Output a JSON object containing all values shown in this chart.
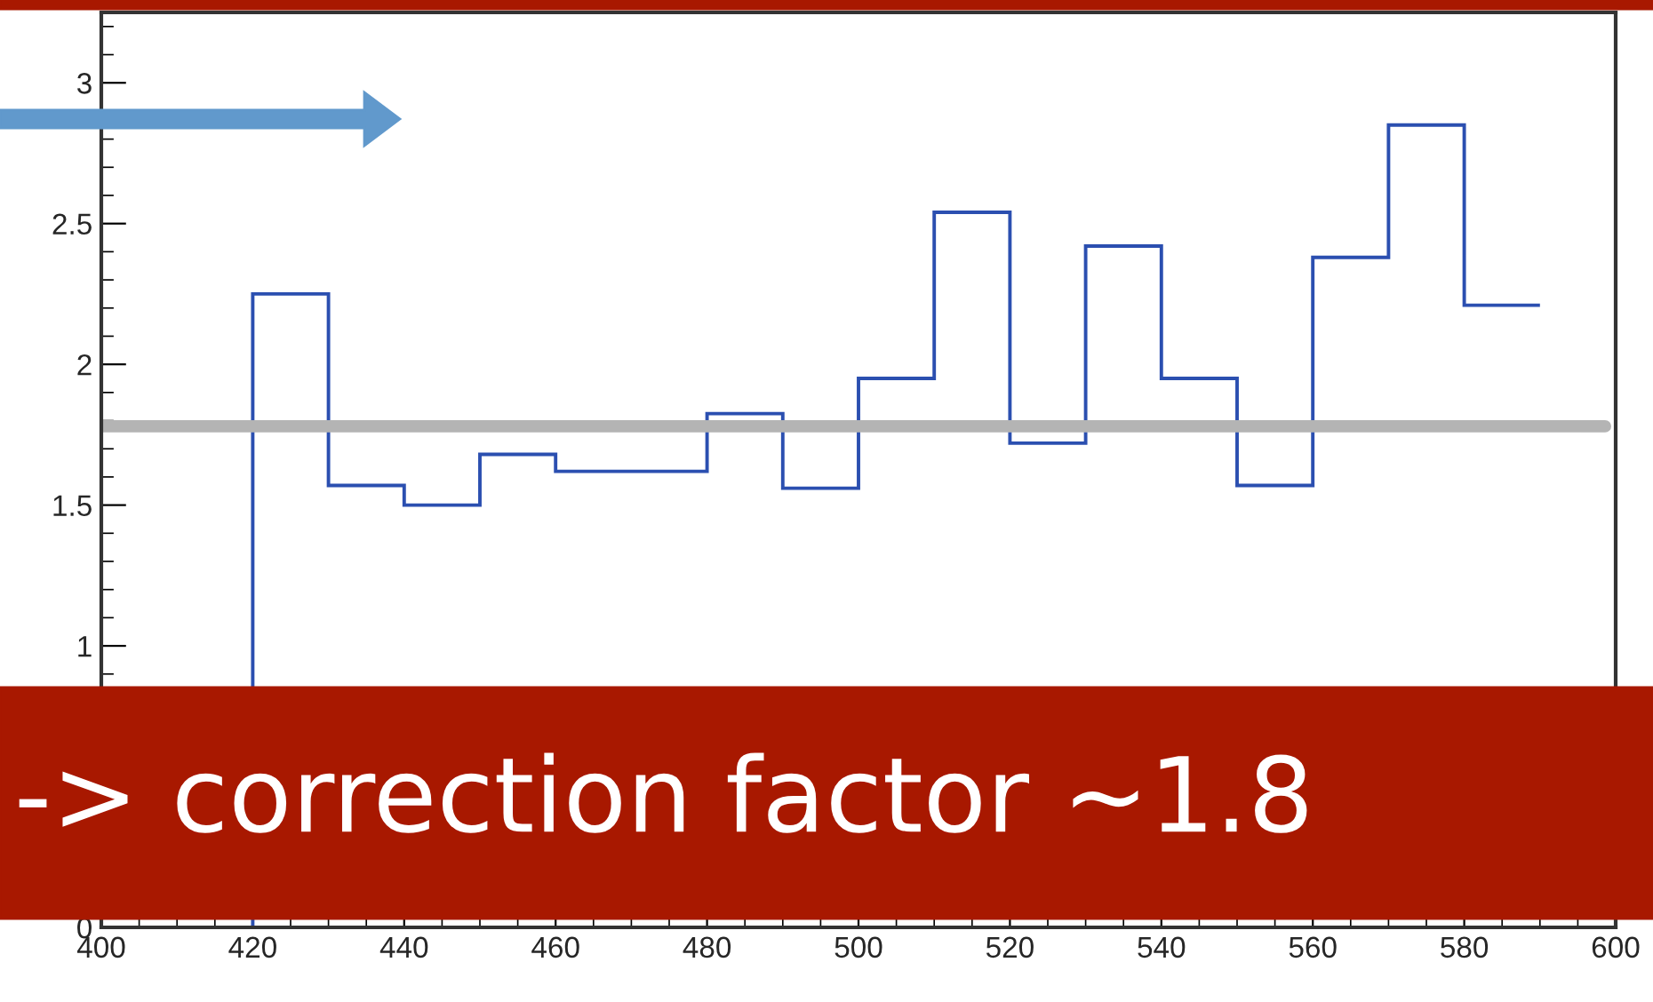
{
  "chart_data": {
    "type": "histogram",
    "bins": [
      400,
      410,
      420,
      430,
      440,
      450,
      460,
      470,
      480,
      490,
      500,
      510,
      520,
      530,
      540,
      550,
      560,
      570,
      580,
      590
    ],
    "values": [
      0,
      0,
      2.25,
      1.57,
      1.5,
      1.68,
      1.62,
      1.62,
      1.825,
      1.56,
      1.95,
      2.54,
      1.72,
      2.42,
      1.95,
      1.57,
      2.38,
      2.85,
      2.21
    ],
    "color": "#2b4fb0",
    "xlim": [
      400,
      600
    ],
    "xticks": [
      400,
      420,
      440,
      460,
      480,
      500,
      520,
      540,
      560,
      580,
      600
    ],
    "ylim": [
      0,
      3.25
    ],
    "yticks": [
      0,
      1,
      1.5,
      2,
      2.5,
      3
    ],
    "grid": false,
    "ref_lines": [
      {
        "axis": "y",
        "value": 1.78,
        "color": "#b4b4b4"
      }
    ],
    "annotations": [
      "-> correction factor ~1.8"
    ]
  }
}
